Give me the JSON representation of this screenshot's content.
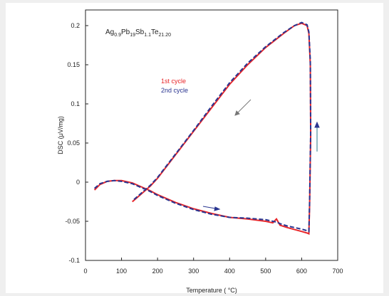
{
  "chart_data": {
    "type": "line",
    "composition": [
      "Ag",
      "0.9",
      "Pb",
      "19",
      "Sb",
      "1.1",
      "Te",
      "21.20"
    ],
    "xlabel": "Temperature (   °C)",
    "ylabel": "DSC (μV/mg)",
    "xlim": [
      0,
      700
    ],
    "ylim": [
      -0.1,
      0.22
    ],
    "xticks": [
      0,
      100,
      200,
      300,
      400,
      500,
      600,
      700
    ],
    "yticks": [
      -0.1,
      -0.05,
      0,
      0.05,
      0.1,
      0.15,
      0.2
    ],
    "grid": false,
    "x": [
      25,
      40,
      60,
      80,
      100,
      130,
      150,
      180,
      200,
      250,
      300,
      350,
      400,
      450,
      500,
      520,
      530,
      540,
      560,
      600,
      615,
      620,
      622,
      625,
      624,
      620,
      615,
      600,
      580,
      550,
      500,
      450,
      400,
      350,
      300,
      250,
      200,
      180,
      150,
      130
    ],
    "series": [
      {
        "name": "1st cycle",
        "color": "#e8262a",
        "dash": false,
        "values": [
          -0.01,
          -0.003,
          0.001,
          0.002,
          0.002,
          -0.001,
          -0.005,
          -0.011,
          -0.016,
          -0.026,
          -0.034,
          -0.04,
          -0.045,
          -0.047,
          -0.05,
          -0.052,
          -0.047,
          -0.055,
          -0.058,
          -0.063,
          -0.065,
          -0.066,
          -0.03,
          0.06,
          0.15,
          0.19,
          0.2,
          0.203,
          0.2,
          0.19,
          0.172,
          0.15,
          0.125,
          0.095,
          0.065,
          0.035,
          0.005,
          -0.005,
          -0.017,
          -0.025
        ]
      },
      {
        "name": "2nd cycle",
        "color": "#2a3590",
        "dash": true,
        "values": [
          -0.008,
          -0.002,
          0.001,
          0.002,
          0.001,
          -0.002,
          -0.006,
          -0.012,
          -0.017,
          -0.027,
          -0.035,
          -0.041,
          -0.045,
          -0.046,
          -0.048,
          -0.05,
          -0.051,
          -0.053,
          -0.056,
          -0.06,
          -0.062,
          -0.063,
          -0.025,
          0.065,
          0.155,
          0.192,
          0.201,
          0.204,
          0.2,
          0.191,
          0.173,
          0.152,
          0.127,
          0.097,
          0.066,
          0.036,
          0.006,
          -0.004,
          -0.016,
          -0.024
        ]
      }
    ]
  }
}
